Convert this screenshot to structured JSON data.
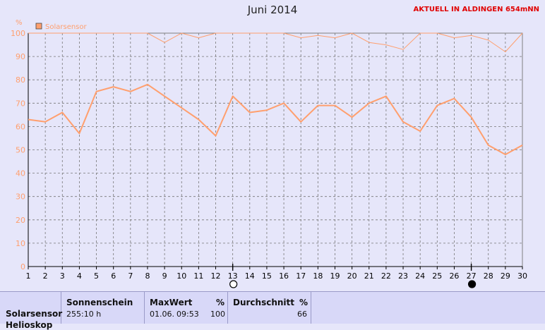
{
  "header": {
    "title": "Juni 2014",
    "station": "AKTUELL IN ALDINGEN 654mNN"
  },
  "chart_data": {
    "type": "line",
    "unit": "%",
    "legend": "Solarsensor",
    "x": [
      1,
      2,
      3,
      4,
      5,
      6,
      7,
      8,
      9,
      10,
      11,
      12,
      13,
      14,
      15,
      16,
      17,
      18,
      19,
      20,
      21,
      22,
      23,
      24,
      25,
      26,
      27,
      28,
      29,
      30
    ],
    "ylim": [
      0,
      100
    ],
    "yticks": [
      0,
      10,
      20,
      30,
      40,
      50,
      60,
      70,
      80,
      90,
      100
    ],
    "grid": true,
    "series": [
      {
        "name": "Solarsensor",
        "values": [
          63,
          62,
          66,
          57,
          75,
          77,
          75,
          78,
          73,
          68,
          63,
          56,
          73,
          66,
          67,
          70,
          62,
          69,
          69,
          64,
          70,
          73,
          62,
          58,
          69,
          72,
          64,
          52,
          48,
          52
        ]
      },
      {
        "values": [
          100,
          100,
          100,
          100,
          100,
          100,
          100,
          100,
          96,
          100,
          98,
          100,
          100,
          100,
          100,
          100,
          98,
          99,
          98,
          100,
          96,
          95,
          93,
          100,
          100,
          98,
          99,
          97,
          92,
          100
        ]
      }
    ],
    "moon_phases": [
      {
        "day": 13,
        "phase": "full-moon"
      },
      {
        "day": 27,
        "phase": "new-moon"
      }
    ],
    "colors": {
      "line": "#ff9f6e",
      "grid": "#777777",
      "axis": "#000000",
      "frame": "#808080"
    }
  },
  "stats": {
    "row_label": "Solarsensor",
    "row_label2": "Helioskop",
    "sunshine": {
      "header": "Sonnenschein",
      "value": "255:10 h"
    },
    "max": {
      "header": "MaxWert",
      "unit": "%",
      "date": "01.06.",
      "time": "09:53",
      "value": "100"
    },
    "avg": {
      "header": "Durchschnitt",
      "unit": "%",
      "value": "66"
    }
  }
}
